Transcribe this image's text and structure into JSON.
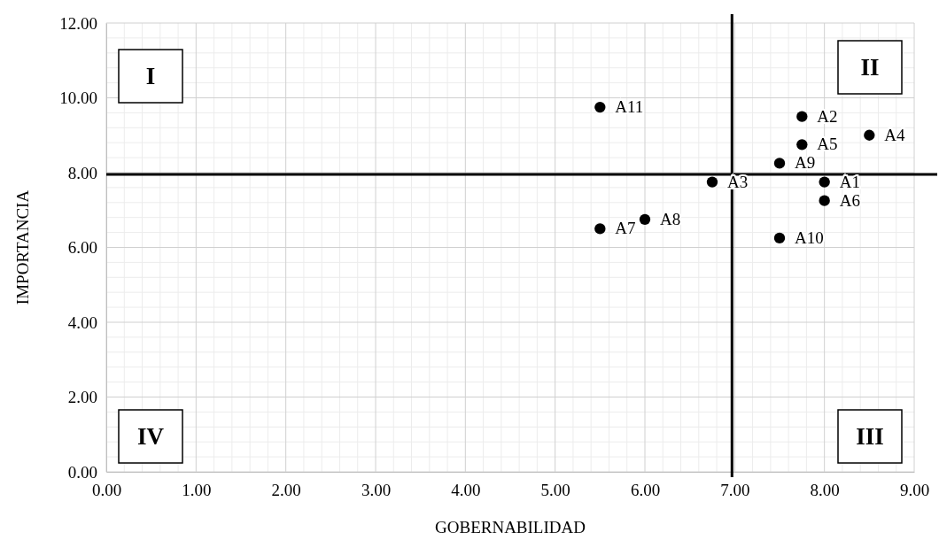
{
  "chart_data": {
    "type": "scatter",
    "xlabel": "GOBERNABILIDAD",
    "ylabel": "IMPORTANCIA",
    "x": [
      8.0,
      7.75,
      6.75,
      8.5,
      7.75,
      8.0,
      5.5,
      6.0,
      7.5,
      7.5,
      5.5
    ],
    "values": [
      7.75,
      9.5,
      7.75,
      9.0,
      8.75,
      7.25,
      6.5,
      6.75,
      8.25,
      6.25,
      9.75
    ],
    "color": "#000000",
    "marker": "circle",
    "xlim": [
      0,
      9
    ],
    "xticks": [
      {
        "value": 0,
        "label": "0.00"
      },
      {
        "value": 1,
        "label": "1.00"
      },
      {
        "value": 2,
        "label": "2.00"
      },
      {
        "value": 3,
        "label": "3.00"
      },
      {
        "value": 4,
        "label": "4.00"
      },
      {
        "value": 5,
        "label": "5.00"
      },
      {
        "value": 6,
        "label": "6.00"
      },
      {
        "value": 7,
        "label": "7.00"
      },
      {
        "value": 8,
        "label": "8.00"
      },
      {
        "value": 9,
        "label": "9.00"
      }
    ],
    "ylim": [
      0,
      12
    ],
    "yticks": [
      {
        "value": 0,
        "label": "0.00"
      },
      {
        "value": 2,
        "label": "2.00"
      },
      {
        "value": 4,
        "label": "4.00"
      },
      {
        "value": 6,
        "label": "6.00"
      },
      {
        "value": 8,
        "label": "8.00"
      },
      {
        "value": 10,
        "label": "10.00"
      },
      {
        "value": 12,
        "label": "12.00"
      }
    ],
    "grid": true,
    "ref_lines": [
      {
        "axis": "x",
        "value": 6.97,
        "color": "#000000"
      },
      {
        "axis": "y",
        "value": 7.95,
        "color": "#000000"
      }
    ],
    "annotations": [
      "I",
      "II",
      "III",
      "IV",
      {
        "text": "A1",
        "x": 8.0,
        "y": 7.75
      },
      {
        "text": "A2",
        "x": 7.75,
        "y": 9.5
      },
      {
        "text": "A3",
        "x": 6.75,
        "y": 7.75
      },
      {
        "text": "A4",
        "x": 8.5,
        "y": 9.0
      },
      {
        "text": "A5",
        "x": 7.75,
        "y": 8.75
      },
      {
        "text": "A6",
        "x": 8.0,
        "y": 7.25
      },
      {
        "text": "A7",
        "x": 5.5,
        "y": 6.5
      },
      {
        "text": "A8",
        "x": 6.0,
        "y": 6.75
      },
      {
        "text": "A9",
        "x": 7.5,
        "y": 8.25
      },
      {
        "text": "A10",
        "x": 7.5,
        "y": 6.25
      },
      {
        "text": "A11",
        "x": 5.5,
        "y": 9.75
      }
    ]
  }
}
